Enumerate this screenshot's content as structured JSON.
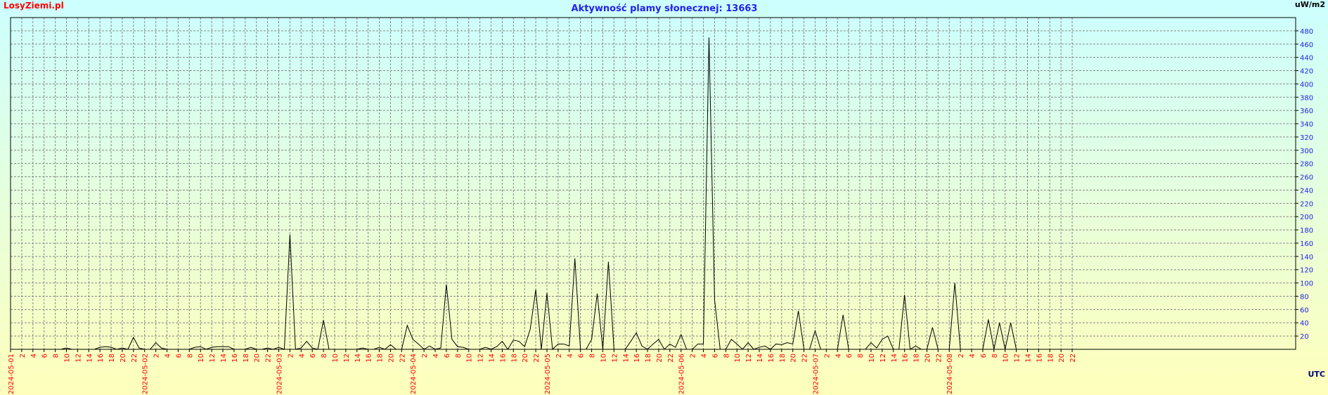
{
  "chart_data": {
    "type": "line",
    "title": "Aktywność plamy słonecznej: 13663",
    "site": "LosyZiemi.pl",
    "y_label": "uW/m2",
    "x_label": "UTC",
    "grid": true,
    "color": "#000000",
    "xlim": [
      0,
      230
    ],
    "ylim": [
      0,
      500
    ],
    "yticks": [
      20,
      40,
      60,
      80,
      100,
      120,
      140,
      160,
      180,
      200,
      220,
      240,
      260,
      280,
      300,
      320,
      340,
      360,
      380,
      400,
      420,
      440,
      460,
      480
    ],
    "xticks": [
      {
        "value": 0,
        "label": "2024-05-01"
      },
      {
        "value": 2,
        "label": "2"
      },
      {
        "value": 4,
        "label": "4"
      },
      {
        "value": 6,
        "label": "6"
      },
      {
        "value": 8,
        "label": "8"
      },
      {
        "value": 10,
        "label": "10"
      },
      {
        "value": 12,
        "label": "12"
      },
      {
        "value": 14,
        "label": "14"
      },
      {
        "value": 16,
        "label": "16"
      },
      {
        "value": 18,
        "label": "18"
      },
      {
        "value": 20,
        "label": "20"
      },
      {
        "value": 22,
        "label": "22"
      },
      {
        "value": 24,
        "label": "2024-05-02"
      },
      {
        "value": 26,
        "label": "2"
      },
      {
        "value": 28,
        "label": "4"
      },
      {
        "value": 30,
        "label": "6"
      },
      {
        "value": 32,
        "label": "8"
      },
      {
        "value": 34,
        "label": "10"
      },
      {
        "value": 36,
        "label": "12"
      },
      {
        "value": 38,
        "label": "14"
      },
      {
        "value": 40,
        "label": "16"
      },
      {
        "value": 42,
        "label": "18"
      },
      {
        "value": 44,
        "label": "20"
      },
      {
        "value": 46,
        "label": "22"
      },
      {
        "value": 48,
        "label": "2024-05-03"
      },
      {
        "value": 50,
        "label": "2"
      },
      {
        "value": 52,
        "label": "4"
      },
      {
        "value": 54,
        "label": "6"
      },
      {
        "value": 56,
        "label": "8"
      },
      {
        "value": 58,
        "label": "10"
      },
      {
        "value": 60,
        "label": "12"
      },
      {
        "value": 62,
        "label": "14"
      },
      {
        "value": 64,
        "label": "16"
      },
      {
        "value": 66,
        "label": "18"
      },
      {
        "value": 68,
        "label": "20"
      },
      {
        "value": 70,
        "label": "22"
      },
      {
        "value": 72,
        "label": "2024-05-04"
      },
      {
        "value": 74,
        "label": "2"
      },
      {
        "value": 76,
        "label": "4"
      },
      {
        "value": 78,
        "label": "6"
      },
      {
        "value": 80,
        "label": "8"
      },
      {
        "value": 82,
        "label": "10"
      },
      {
        "value": 84,
        "label": "12"
      },
      {
        "value": 86,
        "label": "14"
      },
      {
        "value": 88,
        "label": "16"
      },
      {
        "value": 90,
        "label": "18"
      },
      {
        "value": 92,
        "label": "20"
      },
      {
        "value": 94,
        "label": "22"
      },
      {
        "value": 96,
        "label": "2024-05-05"
      },
      {
        "value": 98,
        "label": "2"
      },
      {
        "value": 100,
        "label": "4"
      },
      {
        "value": 102,
        "label": "6"
      },
      {
        "value": 104,
        "label": "8"
      },
      {
        "value": 106,
        "label": "10"
      },
      {
        "value": 108,
        "label": "12"
      },
      {
        "value": 110,
        "label": "14"
      },
      {
        "value": 112,
        "label": "16"
      },
      {
        "value": 114,
        "label": "18"
      },
      {
        "value": 116,
        "label": "20"
      },
      {
        "value": 118,
        "label": "22"
      },
      {
        "value": 120,
        "label": "2024-05-06"
      },
      {
        "value": 122,
        "label": "2"
      },
      {
        "value": 124,
        "label": "4"
      },
      {
        "value": 126,
        "label": "6"
      },
      {
        "value": 128,
        "label": "8"
      },
      {
        "value": 130,
        "label": "10"
      },
      {
        "value": 132,
        "label": "12"
      },
      {
        "value": 134,
        "label": "14"
      },
      {
        "value": 136,
        "label": "16"
      },
      {
        "value": 138,
        "label": "18"
      },
      {
        "value": 140,
        "label": "20"
      },
      {
        "value": 142,
        "label": "22"
      },
      {
        "value": 144,
        "label": "2024-05-07"
      },
      {
        "value": 146,
        "label": "2"
      },
      {
        "value": 148,
        "label": "4"
      },
      {
        "value": 150,
        "label": "6"
      },
      {
        "value": 152,
        "label": "8"
      },
      {
        "value": 154,
        "label": "10"
      },
      {
        "value": 156,
        "label": "12"
      },
      {
        "value": 158,
        "label": "14"
      },
      {
        "value": 160,
        "label": "16"
      },
      {
        "value": 162,
        "label": "18"
      },
      {
        "value": 164,
        "label": "20"
      },
      {
        "value": 166,
        "label": "22"
      },
      {
        "value": 168,
        "label": "2024-05-08"
      },
      {
        "value": 170,
        "label": "2"
      },
      {
        "value": 172,
        "label": "4"
      },
      {
        "value": 174,
        "label": "6"
      },
      {
        "value": 176,
        "label": "8"
      },
      {
        "value": 178,
        "label": "10"
      },
      {
        "value": 180,
        "label": "12"
      },
      {
        "value": 182,
        "label": "14"
      },
      {
        "value": 184,
        "label": "16"
      },
      {
        "value": 186,
        "label": "18"
      },
      {
        "value": 188,
        "label": "20"
      },
      {
        "value": 190,
        "label": "22"
      }
    ],
    "x": [
      0,
      1,
      2,
      3,
      4,
      5,
      6,
      7,
      8,
      9,
      10,
      11,
      12,
      13,
      14,
      15,
      16,
      17,
      18,
      19,
      20,
      21,
      22,
      23,
      24,
      25,
      26,
      27,
      28,
      29,
      30,
      31,
      32,
      33,
      34,
      35,
      36,
      37,
      38,
      39,
      40,
      41,
      42,
      43,
      44,
      45,
      46,
      47,
      48,
      49,
      50,
      51,
      52,
      53,
      54,
      55,
      56,
      57,
      58,
      59,
      60,
      61,
      62,
      63,
      64,
      65,
      66,
      67,
      68,
      69,
      70,
      71,
      72,
      73,
      74,
      75,
      76,
      77,
      78,
      79,
      80,
      81,
      82,
      83,
      84,
      85,
      86,
      87,
      88,
      89,
      90,
      91,
      92,
      93,
      94,
      95,
      96,
      97,
      98,
      99,
      100,
      101,
      102,
      103,
      104,
      105,
      106,
      107,
      108,
      109,
      110,
      111,
      112,
      113,
      114,
      115,
      116,
      117,
      118,
      119,
      120,
      121,
      122,
      123,
      124,
      125,
      126,
      127,
      128,
      129,
      130,
      131,
      132,
      133,
      134,
      135,
      136,
      137,
      138,
      139,
      140,
      141,
      142,
      143,
      144,
      145,
      146,
      147,
      148,
      149,
      150,
      151,
      152,
      153,
      154,
      155,
      156,
      157,
      158,
      159,
      160,
      161,
      162,
      163,
      164,
      165,
      166,
      167,
      168,
      169,
      170,
      171,
      172,
      173,
      174,
      175,
      176,
      177,
      178,
      179,
      180
    ],
    "values": [
      0,
      0,
      0,
      0,
      0,
      0,
      0,
      0,
      0,
      0,
      2,
      0,
      0,
      0,
      0,
      0,
      3,
      4,
      3,
      0,
      2,
      0,
      18,
      2,
      0,
      0,
      10,
      2,
      0,
      0,
      0,
      0,
      0,
      3,
      4,
      0,
      3,
      4,
      4,
      4,
      0,
      0,
      0,
      3,
      0,
      0,
      2,
      0,
      3,
      0,
      173,
      0,
      2,
      12,
      2,
      0,
      44,
      0,
      0,
      0,
      0,
      0,
      0,
      2,
      0,
      0,
      3,
      0,
      7,
      0,
      0,
      36,
      15,
      8,
      0,
      5,
      0,
      2,
      98,
      15,
      4,
      3,
      0,
      0,
      0,
      3,
      0,
      4,
      12,
      0,
      14,
      12,
      4,
      30,
      90,
      0,
      85,
      0,
      8,
      8,
      5,
      137,
      0,
      0,
      15,
      84,
      0,
      132,
      0,
      0,
      0,
      12,
      25,
      5,
      0,
      8,
      15,
      0,
      8,
      3,
      22,
      0,
      0,
      8,
      8,
      470,
      75,
      0,
      0,
      15,
      8,
      0,
      10,
      0,
      3,
      5,
      0,
      8,
      7,
      10,
      8,
      58,
      0,
      0,
      28,
      0,
      0,
      0,
      0,
      52,
      0,
      0,
      0,
      0,
      10,
      2,
      15,
      20,
      0,
      0,
      82,
      0,
      5,
      0,
      0,
      33,
      0,
      0,
      0,
      100,
      0,
      0,
      0,
      0,
      0,
      45,
      0,
      40,
      0,
      40,
      0
    ]
  }
}
